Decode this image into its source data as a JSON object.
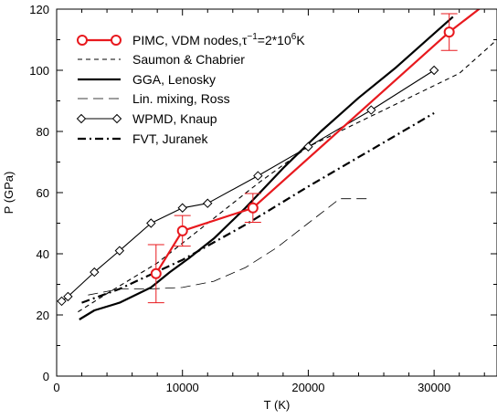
{
  "chart_data": {
    "type": "line",
    "title": "",
    "xlabel": "T (K)",
    "ylabel": "P (GPa)",
    "xlim": [
      0,
      35000
    ],
    "ylim": [
      0,
      120
    ],
    "x_ticks": [
      0,
      10000,
      20000,
      30000
    ],
    "y_ticks": [
      0,
      20,
      40,
      60,
      80,
      100,
      120
    ],
    "grid": false,
    "legend_position": "top-left",
    "series": [
      {
        "name_parts": {
          "prefix": "PIMC, VDM nodes,",
          "tau": "τ",
          "tau_exp": "−1",
          "eq": "=2*10",
          "exp": "6",
          "unit": "K"
        },
        "color": "#e8191e",
        "style": "solid-thick",
        "marker": "open-circle",
        "x": [
          7900,
          10000,
          15600,
          31200
        ],
        "y": [
          33.5,
          47.5,
          55.0,
          112.5
        ],
        "err": [
          9.5,
          5.0,
          4.7,
          6.0
        ],
        "extension": {
          "x": [
            31200,
            34200
          ],
          "y": [
            112.5,
            122.0
          ]
        }
      },
      {
        "name": "Saumon & Chabrier",
        "color": "#000000",
        "style": "short-dash",
        "x": [
          1700,
          4000,
          8000,
          12000,
          16000,
          20000,
          24000,
          28000,
          32000,
          35000
        ],
        "y": [
          21,
          27,
          37,
          50,
          63,
          75,
          83,
          91,
          99,
          110
        ]
      },
      {
        "name": "GGA, Lenosky",
        "color": "#000000",
        "style": "solid-thick",
        "x": [
          1800,
          3000,
          5000,
          7500,
          9000,
          10500,
          12500,
          15000,
          18000,
          21000,
          24000,
          27000,
          30000,
          31500
        ],
        "y": [
          18.5,
          21.5,
          24.0,
          29.0,
          34.0,
          38.5,
          45.0,
          55.0,
          68.0,
          80.0,
          91.0,
          101.0,
          112.0,
          117.5
        ]
      },
      {
        "name": "Lin. mixing, Ross",
        "color": "#000000",
        "style": "long-dash-thin",
        "x": [
          2500,
          5000,
          7500,
          10000,
          12500,
          15000,
          17500,
          20000,
          22500,
          25000
        ],
        "y": [
          26.5,
          28.5,
          28.5,
          29.0,
          31.0,
          35.5,
          42.0,
          50.0,
          58.0,
          58.0
        ]
      },
      {
        "name": "WPMD, Knaup",
        "color": "#000000",
        "style": "solid-thin",
        "marker": "open-diamond",
        "x": [
          400,
          900,
          3000,
          5000,
          7500,
          10000,
          12000,
          16000,
          20000,
          25000,
          30000
        ],
        "y": [
          24.5,
          26.0,
          34.0,
          41.0,
          50.0,
          55.0,
          56.5,
          65.5,
          75.0,
          87.0,
          100.0
        ]
      },
      {
        "name": "FVT, Juranek",
        "color": "#000000",
        "style": "dash-dot",
        "x": [
          2000,
          5000,
          10000,
          15000,
          20000,
          25000,
          30000
        ],
        "y": [
          24.0,
          28.5,
          38.0,
          49.5,
          62.0,
          74.0,
          86.0
        ]
      }
    ]
  }
}
